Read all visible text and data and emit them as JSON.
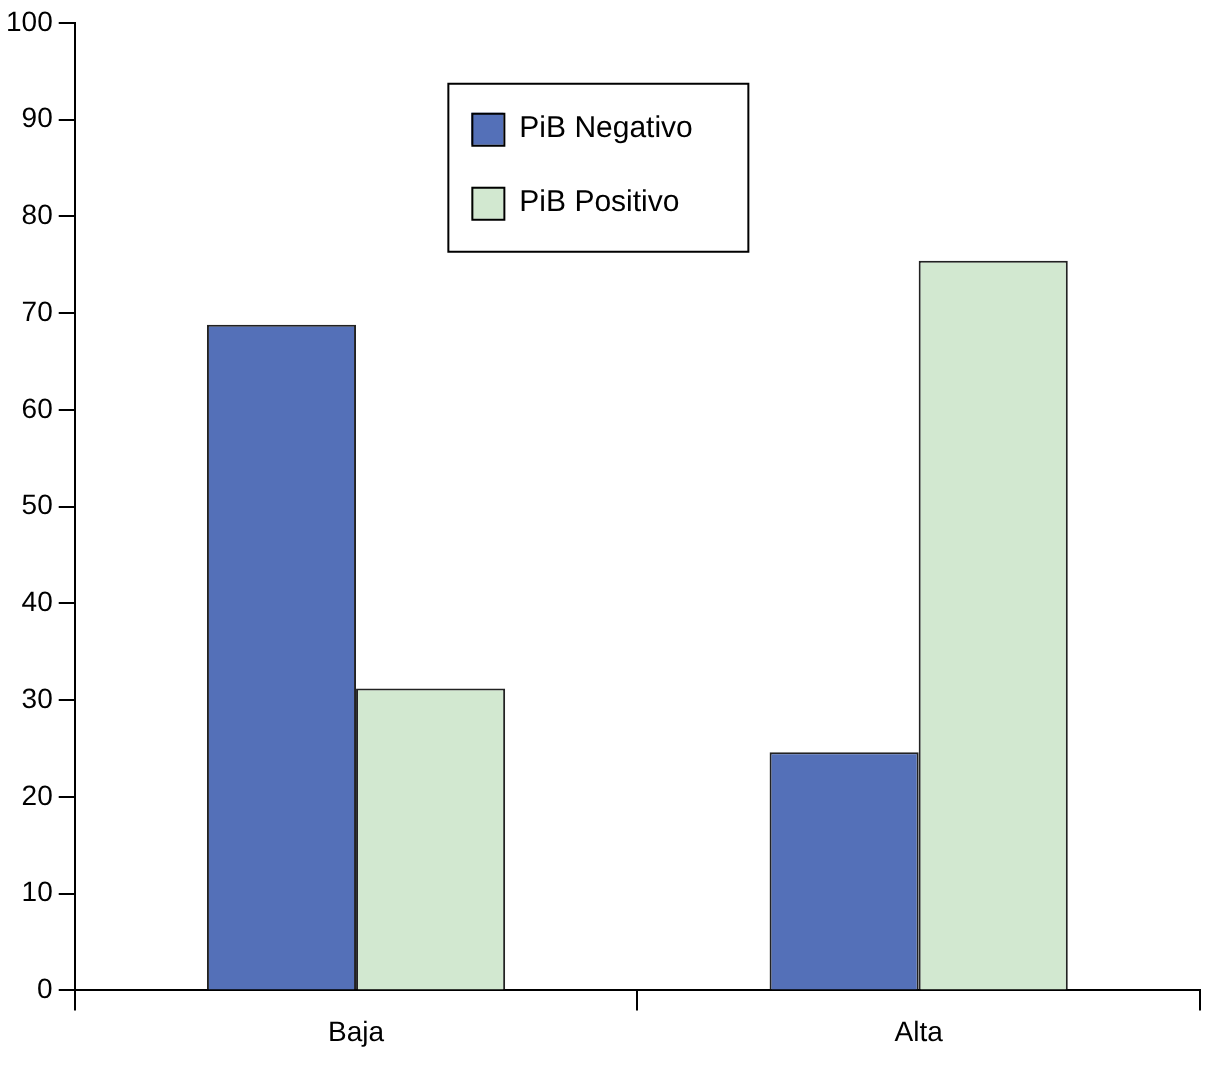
{
  "chart_data": {
    "type": "bar",
    "categories": [
      "Baja",
      "Alta"
    ],
    "series": [
      {
        "name": "PiB Negativo",
        "color": "#5470b8",
        "values": [
          68.8,
          24.6
        ]
      },
      {
        "name": "PiB Positivo",
        "color": "#d2e8d0",
        "values": [
          31.2,
          75.4
        ]
      }
    ],
    "ylim": [
      0,
      100
    ],
    "yticks": [
      0,
      10,
      20,
      30,
      40,
      50,
      60,
      70,
      80,
      90,
      100
    ],
    "grid": false,
    "legend": "top"
  }
}
